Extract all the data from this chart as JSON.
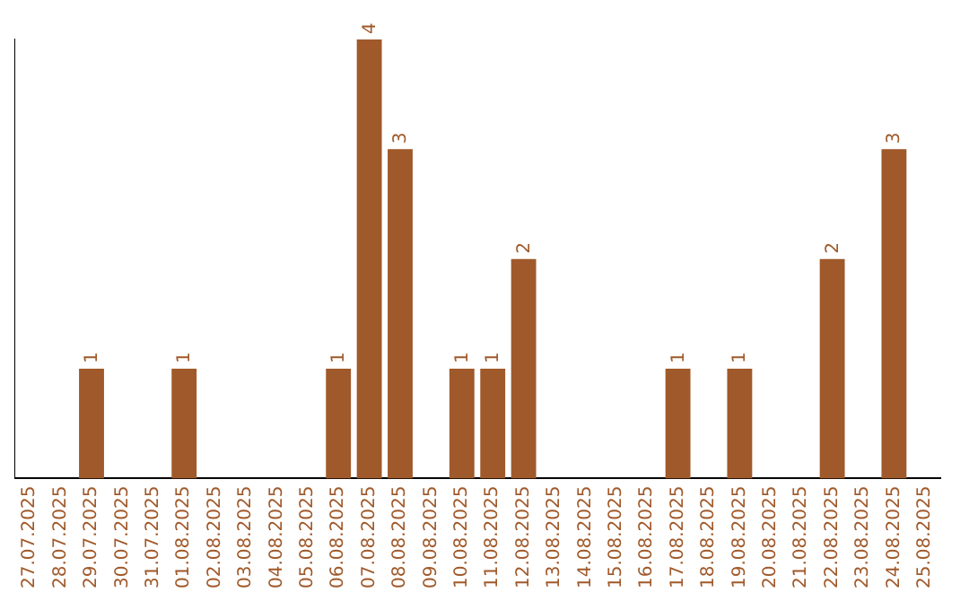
{
  "chart_data": {
    "type": "bar",
    "categories": [
      "27.07.2025",
      "28.07.2025",
      "29.07.2025",
      "30.07.2025",
      "31.07.2025",
      "01.08.2025",
      "02.08.2025",
      "03.08.2025",
      "04.08.2025",
      "05.08.2025",
      "06.08.2025",
      "07.08.2025",
      "08.08.2025",
      "09.08.2025",
      "10.08.2025",
      "11.08.2025",
      "12.08.2025",
      "13.08.2025",
      "14.08.2025",
      "15.08.2025",
      "16.08.2025",
      "17.08.2025",
      "18.08.2025",
      "19.08.2025",
      "20.08.2025",
      "21.08.2025",
      "22.08.2025",
      "23.08.2025",
      "24.08.2025",
      "25.08.2025"
    ],
    "values": [
      null,
      null,
      1,
      null,
      null,
      1,
      null,
      null,
      null,
      null,
      1,
      4,
      3,
      null,
      1,
      1,
      2,
      null,
      null,
      null,
      null,
      1,
      null,
      1,
      null,
      null,
      2,
      null,
      3,
      null
    ],
    "color": "#a0592a",
    "data_labels": true,
    "grid": false,
    "legend": false,
    "tick_labels": "x"
  }
}
